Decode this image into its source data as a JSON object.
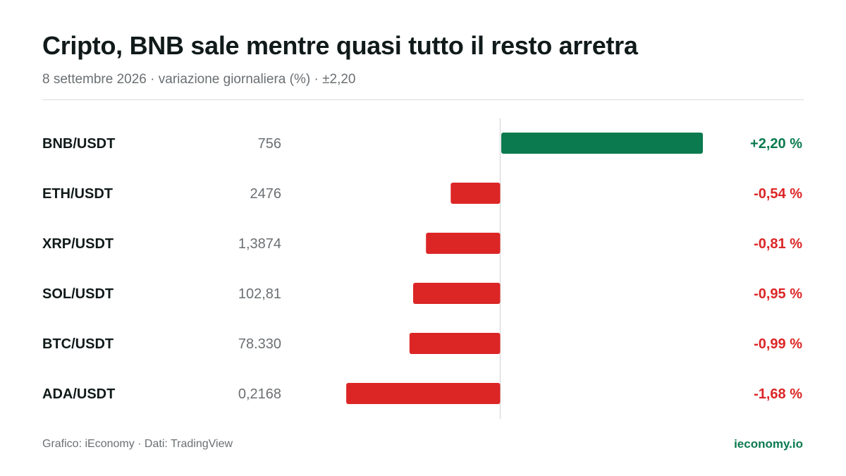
{
  "header": {
    "title": "Cripto, BNB sale mentre quasi tutto il resto arretra",
    "subtitle": "8 settembre 2026 · variazione giornaliera (%) · ±2,20"
  },
  "colors": {
    "positive": "#0b7a4f",
    "negative": "#dc2626",
    "axis": "#d9dcde"
  },
  "chart_data": {
    "type": "bar",
    "orientation": "horizontal",
    "categories": [
      "BNB/USDT",
      "ETH/USDT",
      "XRP/USDT",
      "SOL/USDT",
      "BTC/USDT",
      "ADA/USDT"
    ],
    "prices": [
      "756",
      "2476",
      "1,3874",
      "102,81",
      "78.330",
      "0,2168"
    ],
    "values": [
      2.2,
      -0.54,
      -0.81,
      -0.95,
      -0.99,
      -1.68
    ],
    "value_labels": [
      "+2,20 %",
      "-0,54 %",
      "-0,81 %",
      "-0,95 %",
      "-0,99 %",
      "-1,68 %"
    ],
    "xlim": [
      -2.2,
      2.2
    ],
    "grid": false,
    "legend": "none"
  },
  "footer": {
    "source": "Grafico: iEconomy · Dati: TradingView",
    "brand": "ieconomy.io"
  }
}
